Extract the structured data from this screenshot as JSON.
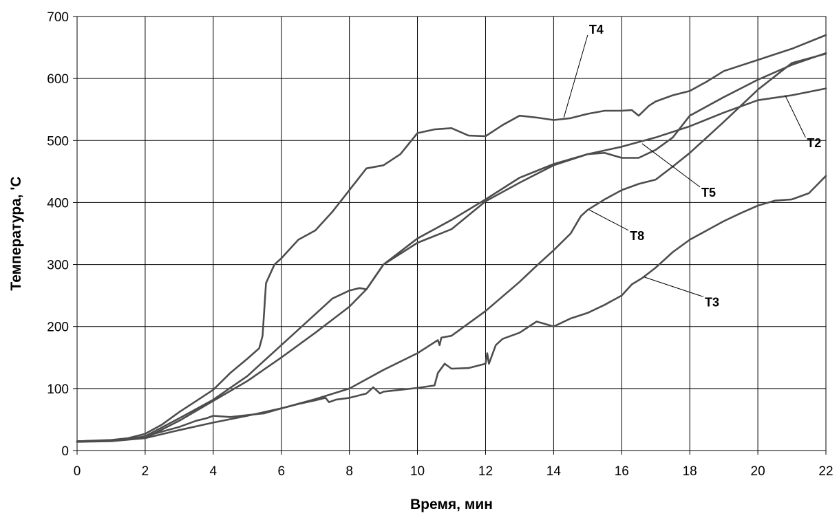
{
  "chart_data": {
    "type": "line",
    "title": "",
    "xlabel": "Время, мин",
    "ylabel": "Температура, 'С",
    "xlim": [
      0,
      22
    ],
    "ylim": [
      0,
      700
    ],
    "xticks": [
      0,
      2,
      4,
      6,
      8,
      10,
      12,
      14,
      16,
      18,
      20,
      22
    ],
    "yticks": [
      0,
      100,
      200,
      300,
      400,
      500,
      600,
      700
    ],
    "grid": true,
    "legend": "none",
    "line_color": "#4d4d4d",
    "series": [
      {
        "name": "T4",
        "label_at": [
          15.0,
          670
        ],
        "leader_to": [
          14.3,
          537
        ],
        "points": [
          [
            0,
            15
          ],
          [
            1,
            17
          ],
          [
            1.5,
            20
          ],
          [
            2,
            27
          ],
          [
            2.5,
            42
          ],
          [
            3,
            62
          ],
          [
            3.5,
            80
          ],
          [
            4,
            98
          ],
          [
            4.5,
            125
          ],
          [
            5,
            148
          ],
          [
            5.35,
            165
          ],
          [
            5.45,
            185
          ],
          [
            5.55,
            270
          ],
          [
            5.8,
            300
          ],
          [
            6,
            310
          ],
          [
            6.5,
            340
          ],
          [
            7,
            355
          ],
          [
            7.5,
            385
          ],
          [
            8,
            420
          ],
          [
            8.5,
            455
          ],
          [
            9,
            460
          ],
          [
            9.5,
            478
          ],
          [
            10,
            512
          ],
          [
            10.5,
            518
          ],
          [
            11,
            520
          ],
          [
            11.5,
            508
          ],
          [
            12,
            507
          ],
          [
            12.5,
            525
          ],
          [
            13,
            540
          ],
          [
            13.5,
            537
          ],
          [
            14,
            533
          ],
          [
            14.5,
            536
          ],
          [
            15,
            543
          ],
          [
            15.5,
            548
          ],
          [
            16,
            548
          ],
          [
            16.3,
            549
          ],
          [
            16.5,
            540
          ],
          [
            16.8,
            556
          ],
          [
            17,
            563
          ],
          [
            17.5,
            573
          ],
          [
            18,
            580
          ],
          [
            18.5,
            595
          ],
          [
            19,
            612
          ],
          [
            20,
            630
          ],
          [
            21,
            648
          ],
          [
            22,
            670
          ]
        ]
      },
      {
        "name": "T2",
        "label_at": [
          21.4,
          505
        ],
        "leader_to": [
          20.8,
          573
        ],
        "points": [
          [
            0,
            15
          ],
          [
            1,
            16
          ],
          [
            1.5,
            18
          ],
          [
            2,
            23
          ],
          [
            3,
            52
          ],
          [
            4,
            82
          ],
          [
            5,
            120
          ],
          [
            6,
            170
          ],
          [
            7,
            220
          ],
          [
            7.5,
            245
          ],
          [
            8,
            258
          ],
          [
            8.3,
            262
          ],
          [
            8.5,
            260
          ],
          [
            9,
            300
          ],
          [
            10,
            342
          ],
          [
            11,
            372
          ],
          [
            12,
            405
          ],
          [
            13,
            440
          ],
          [
            14,
            462
          ],
          [
            15,
            478
          ],
          [
            16,
            490
          ],
          [
            17,
            505
          ],
          [
            18,
            523
          ],
          [
            19,
            545
          ],
          [
            20,
            565
          ],
          [
            21,
            573
          ],
          [
            22,
            584
          ]
        ]
      },
      {
        "name": "T5",
        "label_at": [
          18.3,
          425
        ],
        "leader_to": [
          16.6,
          495
        ],
        "points": [
          [
            0,
            15
          ],
          [
            1,
            16
          ],
          [
            2,
            20
          ],
          [
            3,
            48
          ],
          [
            4,
            80
          ],
          [
            5,
            112
          ],
          [
            6,
            150
          ],
          [
            7,
            190
          ],
          [
            8,
            232
          ],
          [
            8.5,
            260
          ],
          [
            9,
            300
          ],
          [
            10,
            335
          ],
          [
            11,
            357
          ],
          [
            12,
            402
          ],
          [
            13,
            432
          ],
          [
            14,
            460
          ],
          [
            15,
            478
          ],
          [
            15.5,
            480
          ],
          [
            16,
            472
          ],
          [
            16.5,
            472
          ],
          [
            17,
            485
          ],
          [
            17.5,
            505
          ],
          [
            18,
            540
          ],
          [
            19,
            570
          ],
          [
            20,
            598
          ],
          [
            21,
            622
          ],
          [
            22,
            641
          ]
        ]
      },
      {
        "name": "T8",
        "label_at": [
          16.2,
          355
        ],
        "leader_to": [
          15.05,
          388
        ],
        "points": [
          [
            0,
            14
          ],
          [
            1,
            15
          ],
          [
            2,
            20
          ],
          [
            3,
            33
          ],
          [
            4,
            45
          ],
          [
            5,
            56
          ],
          [
            6,
            68
          ],
          [
            7,
            83
          ],
          [
            8,
            100
          ],
          [
            9,
            130
          ],
          [
            10,
            157
          ],
          [
            10.6,
            178
          ],
          [
            10.65,
            170
          ],
          [
            10.7,
            182
          ],
          [
            11,
            185
          ],
          [
            12,
            225
          ],
          [
            13,
            272
          ],
          [
            13.5,
            298
          ],
          [
            14,
            323
          ],
          [
            14.5,
            350
          ],
          [
            14.8,
            378
          ],
          [
            15,
            388
          ],
          [
            15.5,
            405
          ],
          [
            16,
            420
          ],
          [
            16.5,
            430
          ],
          [
            17,
            437
          ],
          [
            17.5,
            458
          ],
          [
            18,
            480
          ],
          [
            19,
            530
          ],
          [
            20,
            582
          ],
          [
            21,
            625
          ],
          [
            22,
            640
          ]
        ]
      },
      {
        "name": "T3",
        "label_at": [
          18.4,
          248
        ],
        "leader_to": [
          16.65,
          280
        ],
        "points": [
          [
            0,
            15
          ],
          [
            1,
            16
          ],
          [
            1.5,
            18
          ],
          [
            2,
            23
          ],
          [
            3,
            38
          ],
          [
            3.5,
            48
          ],
          [
            3.8,
            52
          ],
          [
            4,
            56
          ],
          [
            4.5,
            54
          ],
          [
            5,
            57
          ],
          [
            5.5,
            60
          ],
          [
            6,
            68
          ],
          [
            6.5,
            75
          ],
          [
            7,
            81
          ],
          [
            7.3,
            85
          ],
          [
            7.4,
            78
          ],
          [
            7.6,
            82
          ],
          [
            8,
            85
          ],
          [
            8.5,
            92
          ],
          [
            8.7,
            102
          ],
          [
            8.9,
            92
          ],
          [
            9,
            95
          ],
          [
            10,
            101
          ],
          [
            10.5,
            105
          ],
          [
            10.6,
            125
          ],
          [
            10.8,
            140
          ],
          [
            11,
            132
          ],
          [
            11.5,
            133
          ],
          [
            12,
            140
          ],
          [
            12.05,
            157
          ],
          [
            12.1,
            140
          ],
          [
            12.3,
            170
          ],
          [
            12.5,
            180
          ],
          [
            13,
            190
          ],
          [
            13.5,
            208
          ],
          [
            13.7,
            205
          ],
          [
            14,
            200
          ],
          [
            14.5,
            213
          ],
          [
            15,
            222
          ],
          [
            15.5,
            235
          ],
          [
            16,
            250
          ],
          [
            16.3,
            268
          ],
          [
            16.6,
            278
          ],
          [
            17,
            295
          ],
          [
            17.5,
            320
          ],
          [
            18,
            340
          ],
          [
            18.5,
            355
          ],
          [
            19,
            370
          ],
          [
            19.5,
            383
          ],
          [
            20,
            395
          ],
          [
            20.5,
            403
          ],
          [
            21,
            405
          ],
          [
            21.5,
            415
          ],
          [
            22,
            443
          ]
        ]
      }
    ]
  }
}
